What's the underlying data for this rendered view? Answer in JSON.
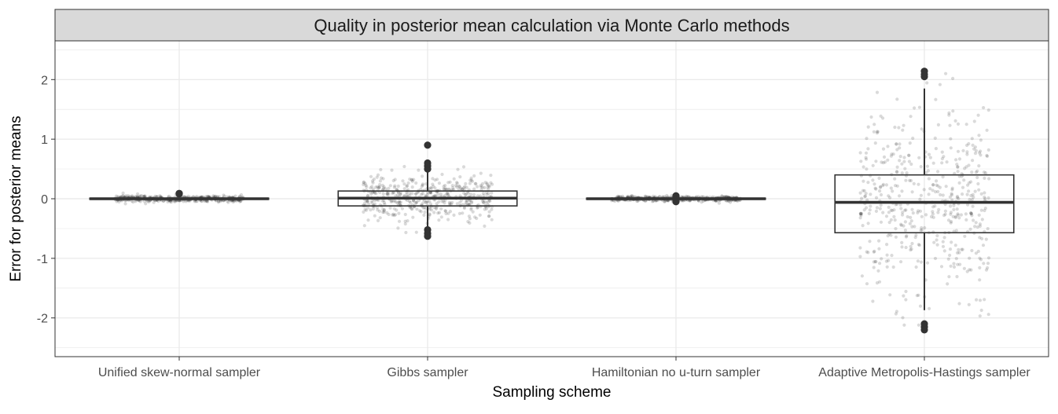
{
  "chart_data": {
    "type": "boxplot",
    "title": "Quality in posterior mean calculation via Monte Carlo methods",
    "xlabel": "Sampling scheme",
    "ylabel": "Error for posterior means",
    "ylim": [
      -2.65,
      2.65
    ],
    "yticks": [
      -2,
      -1,
      0,
      1,
      2
    ],
    "grid": true,
    "categories": [
      "Unified skew-normal sampler",
      "Gibbs sampler",
      "Hamiltonian no u-turn sampler",
      "Adaptive Metropolis-Hastings sampler"
    ],
    "boxes": [
      {
        "q1": -0.01,
        "median": 0.0,
        "q3": 0.01,
        "whisker_low": -0.02,
        "whisker_high": 0.02,
        "outliers": [
          0.09,
          0.08
        ],
        "jitter_sd": 0.025
      },
      {
        "q1": -0.12,
        "median": 0.01,
        "q3": 0.13,
        "whisker_low": -0.48,
        "whisker_high": 0.48,
        "outliers": [
          0.9,
          0.6,
          0.55,
          0.5,
          -0.52,
          -0.58,
          -0.63
        ],
        "jitter_sd": 0.2
      },
      {
        "q1": -0.01,
        "median": 0.0,
        "q3": 0.01,
        "whisker_low": -0.02,
        "whisker_high": 0.02,
        "outliers": [
          0.05,
          0.03,
          -0.03,
          -0.05
        ],
        "jitter_sd": 0.02
      },
      {
        "q1": -0.57,
        "median": -0.06,
        "q3": 0.4,
        "whisker_low": -1.87,
        "whisker_high": 1.85,
        "outliers": [
          2.14,
          2.09,
          2.05,
          -2.1,
          -2.15,
          -2.2
        ],
        "jitter_sd": 0.75
      }
    ],
    "point_color": "#333333",
    "panel_strip_color": "#d9d9d9",
    "grid_color": "#ebebeb"
  }
}
